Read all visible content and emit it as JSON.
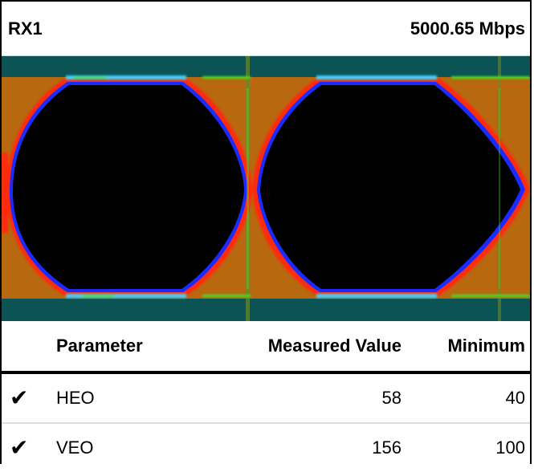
{
  "header": {
    "channel": "RX1",
    "rate": "5000.65 Mbps"
  },
  "table": {
    "columns": {
      "parameter": "Parameter",
      "measured": "Measured Value",
      "minimum": "Minimum"
    },
    "rows": [
      {
        "status_icon": "check-icon",
        "parameter": "HEO",
        "measured": "58",
        "minimum": "40"
      },
      {
        "status_icon": "check-icon",
        "parameter": "VEO",
        "measured": "156",
        "minimum": "100"
      }
    ]
  },
  "colors": {
    "background": "#0b5355",
    "fill": "#b8680f",
    "eye_interior": "#000000",
    "trace_inner": "#1b2bff",
    "trace_outer": "#ff2a10",
    "trace_hot": "#3cd0ff",
    "trace_green": "#40e020"
  }
}
